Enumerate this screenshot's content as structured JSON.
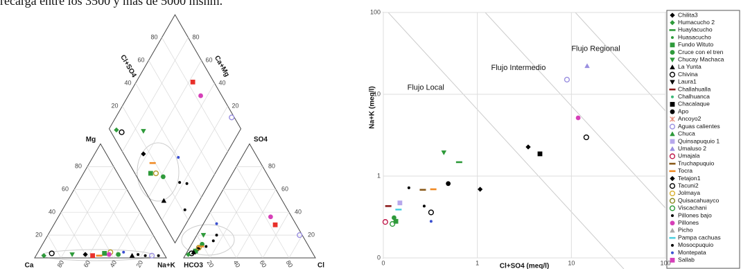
{
  "text": "recarga entre los 3500 y más de 5000 msnm.",
  "chart_data": [
    {
      "type": "piper",
      "cation_labels": [
        "Ca",
        "Mg",
        "Na+K"
      ],
      "anion_labels": [
        "HCO3",
        "SO4",
        "Cl"
      ],
      "diamond_labels": [
        "Cl+SO4",
        "Ca+Mg"
      ],
      "ticks": [
        20,
        40,
        60,
        80
      ],
      "grid": true,
      "samples": [
        {
          "color": "#000000",
          "marker": "diamond",
          "cations": [
            60,
            3,
            37
          ],
          "anions": [
            85,
            8,
            7
          ]
        },
        {
          "color": "#2e9a3a",
          "marker": "square",
          "cations": [
            45,
            4,
            51
          ],
          "anions": [
            88,
            6,
            6
          ]
        },
        {
          "color": "#2e9a3a",
          "marker": "circle",
          "cations": [
            35,
            3,
            62
          ],
          "anions": [
            80,
            12,
            8
          ]
        },
        {
          "color": "#000000",
          "marker": "tri",
          "cations": [
            25,
            2,
            73
          ],
          "anions": [
            90,
            5,
            5
          ]
        },
        {
          "color": "#f08a24",
          "marker": "dash",
          "cations": [
            50,
            2,
            48
          ],
          "anions": [
            82,
            10,
            8
          ]
        },
        {
          "color": "#b59a2a",
          "marker": "ring",
          "cations": [
            40,
            5,
            55
          ],
          "anions": [
            84,
            9,
            7
          ]
        },
        {
          "color": "#e8302a",
          "marker": "square",
          "cations": [
            55,
            2,
            43
          ],
          "anions": [
            16,
            29,
            55
          ]
        },
        {
          "color": "#d63fb8",
          "marker": "circle",
          "cations": [
            42,
            3,
            55
          ],
          "anions": [
            16,
            36,
            48
          ]
        },
        {
          "color": "#9a8fe0",
          "marker": "ring",
          "cations": [
            10,
            2,
            88
          ],
          "anions": [
            2,
            20,
            78
          ]
        },
        {
          "color": "#000000",
          "marker": "dot",
          "cations": [
            20,
            3,
            77
          ],
          "anions": [
            70,
            15,
            15
          ]
        },
        {
          "color": "#3a4fd0",
          "marker": "dot",
          "cations": [
            30,
            5,
            65
          ],
          "anions": [
            60,
            30,
            10
          ]
        },
        {
          "color": "#2e9a3a",
          "marker": "tridown",
          "cations": [
            70,
            3,
            27
          ],
          "anions": [
            75,
            20,
            5
          ]
        },
        {
          "color": "#000000",
          "marker": "ring",
          "cations": [
            85,
            4,
            11
          ],
          "anions": [
            92,
            4,
            4
          ]
        },
        {
          "color": "#000000",
          "marker": "dot",
          "cations": [
            15,
            2,
            83
          ],
          "anions": [
            65,
            20,
            15
          ]
        },
        {
          "color": "#2e9a3a",
          "marker": "diamond",
          "cations": [
            92,
            2,
            6
          ],
          "anions": [
            95,
            3,
            2
          ]
        },
        {
          "color": "#000000",
          "marker": "dot",
          "cations": [
            5,
            2,
            93
          ],
          "anions": [
            78,
            10,
            12
          ]
        }
      ]
    },
    {
      "type": "scatter",
      "x_label": "Cl+SO4 (meq/l)",
      "y_label": "Na+K (meq/l)",
      "xlog": true,
      "ylog": true,
      "grid": true,
      "xlim": [
        0.1,
        100
      ],
      "ylim": [
        0.1,
        100
      ],
      "xticks": [
        {
          "value": 0.1,
          "label": "0"
        },
        1,
        10,
        100
      ],
      "yticks": [
        {
          "value": 0.1,
          "label": "0"
        },
        1,
        10,
        100
      ],
      "annotations": [
        {
          "text": "Flujo Local",
          "x": 0.18,
          "y": 12
        },
        {
          "text": "Flujo Intermedio",
          "x": 1.4,
          "y": 21
        },
        {
          "text": "Flujo Regional",
          "x": 10,
          "y": 36
        }
      ],
      "legend": "right",
      "series": [
        {
          "name": "Chilita3",
          "color": "#000000",
          "marker": "diamond",
          "x": [
            1.07
          ],
          "y": [
            0.69
          ]
        },
        {
          "name": "Humacucho 2",
          "color": "#2e9a3a",
          "marker": "diamond",
          "x": [],
          "y": []
        },
        {
          "name": "Huaylacucho",
          "color": "#2e9a3a",
          "marker": "dash",
          "x": [
            0.64
          ],
          "y": [
            1.48
          ]
        },
        {
          "name": "Huasacucho",
          "color": "#2e9a3a",
          "marker": "dot",
          "x": [],
          "y": []
        },
        {
          "name": "Fundo Wituto",
          "color": "#2e9a3a",
          "marker": "square",
          "x": [
            0.136
          ],
          "y": [
            0.28
          ]
        },
        {
          "name": "Cruce con el tren",
          "color": "#2e9a3a",
          "marker": "circle",
          "x": [
            0.13
          ],
          "y": [
            0.31
          ]
        },
        {
          "name": "Chucay Machaca",
          "color": "#2e9a3a",
          "marker": "tridown",
          "x": [
            0.44
          ],
          "y": [
            1.94
          ]
        },
        {
          "name": "La Yunta",
          "color": "#000000",
          "marker": "tri",
          "x": [],
          "y": []
        },
        {
          "name": "Chivina",
          "color": "#000000",
          "marker": "ring",
          "x": [
            0.322
          ],
          "y": [
            0.36
          ]
        },
        {
          "name": "Laura1",
          "color": "#000000",
          "marker": "tridown",
          "x": [],
          "y": []
        },
        {
          "name": "Challahualla",
          "color": "#8b1a1a",
          "marker": "dash",
          "x": [
            0.113
          ],
          "y": [
            0.43
          ]
        },
        {
          "name": "Chalhuanca",
          "color": "#3cb878",
          "marker": "dot",
          "x": [],
          "y": []
        },
        {
          "name": "Chacalaque",
          "color": "#000000",
          "marker": "square",
          "x": [
            4.63
          ],
          "y": [
            1.87
          ]
        },
        {
          "name": "Apo",
          "color": "#000000",
          "marker": "circle",
          "x": [
            0.49
          ],
          "y": [
            0.81
          ]
        },
        {
          "name": "Ancoyo2",
          "color": "#e88a7a",
          "marker": "star",
          "x": [],
          "y": []
        },
        {
          "name": "Aguas calientes",
          "color": "#9a8fe0",
          "marker": "ring",
          "x": [
            8.97
          ],
          "y": [
            15.1
          ]
        },
        {
          "name": "Chuca",
          "color": "#2e9a3a",
          "marker": "tri",
          "x": [],
          "y": []
        },
        {
          "name": "Quinsapuquio 1",
          "color": "#b7a8ec",
          "marker": "square",
          "x": [
            0.15
          ],
          "y": [
            0.47
          ]
        },
        {
          "name": "Umaluso 2",
          "color": "#9a8fe0",
          "marker": "tri",
          "x": [
            14.7
          ],
          "y": [
            22.2
          ]
        },
        {
          "name": "Umajala",
          "color": "#c0184a",
          "marker": "ring",
          "x": [
            0.105
          ],
          "y": [
            0.275
          ]
        },
        {
          "name": "Truchapuquio",
          "color": "#8a5a1a",
          "marker": "dash",
          "x": [
            0.263
          ],
          "y": [
            0.68
          ]
        },
        {
          "name": "Tocra",
          "color": "#f08a24",
          "marker": "dash",
          "x": [
            0.34
          ],
          "y": [
            0.69
          ]
        },
        {
          "name": "Tetajon1",
          "color": "#000000",
          "marker": "diamond",
          "x": [
            3.47
          ],
          "y": [
            2.27
          ]
        },
        {
          "name": "Tacuni2",
          "color": "#000000",
          "marker": "ring",
          "x": [
            14.4
          ],
          "y": [
            2.98
          ]
        },
        {
          "name": "Jolmaya",
          "color": "#d8b030",
          "marker": "ring",
          "x": [],
          "y": []
        },
        {
          "name": "Quisacahuayco",
          "color": "#8a8a20",
          "marker": "ring",
          "x": [],
          "y": []
        },
        {
          "name": "Viscachani",
          "color": "#2e9a3a",
          "marker": "ring",
          "x": [
            0.125
          ],
          "y": [
            0.26
          ]
        },
        {
          "name": "Pillones bajo",
          "color": "#000000",
          "marker": "dot",
          "x": [
            0.187
          ],
          "y": [
            0.72
          ]
        },
        {
          "name": "Pillones",
          "color": "#d63fb8",
          "marker": "circle",
          "x": [
            11.8
          ],
          "y": [
            5.15
          ]
        },
        {
          "name": "Picho",
          "color": "#aaaaaa",
          "marker": "tri",
          "x": [],
          "y": []
        },
        {
          "name": "Pampa cachuas",
          "color": "#4fd0e0",
          "marker": "dash",
          "x": [
            0.145
          ],
          "y": [
            0.39
          ]
        },
        {
          "name": "Mosocpuquio",
          "color": "#000000",
          "marker": "dot",
          "x": [
            0.272
          ],
          "y": [
            0.43
          ]
        },
        {
          "name": "Montepata",
          "color": "#3a4fd0",
          "marker": "dot",
          "x": [
            0.322
          ],
          "y": [
            0.28
          ]
        },
        {
          "name": "Sallab",
          "color": "#d63fb8",
          "marker": "square",
          "x": [],
          "y": []
        }
      ]
    }
  ]
}
